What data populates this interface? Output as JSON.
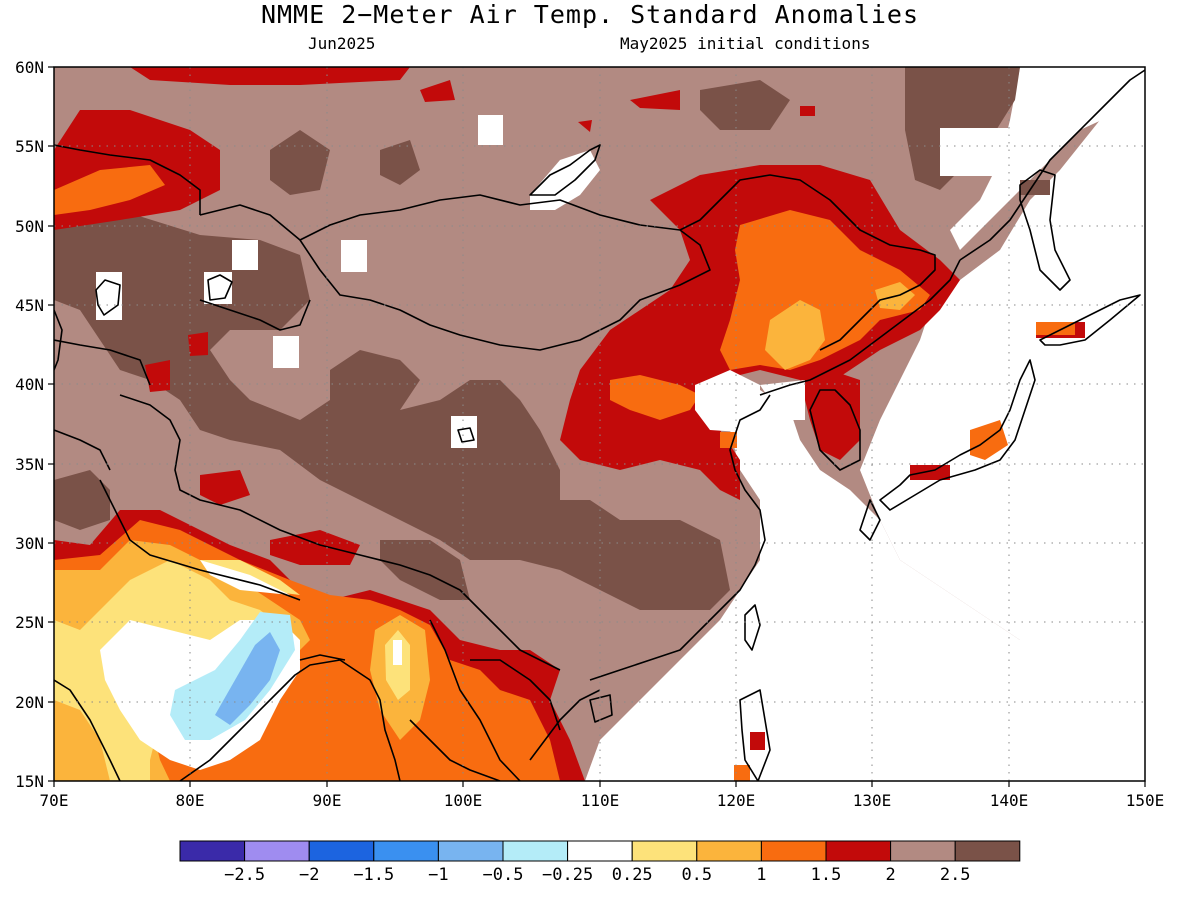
{
  "title": "NMME 2−Meter Air Temp. Standard Anomalies",
  "subtitle_left": "Jun2025",
  "subtitle_right": "May2025 initial conditions",
  "map": {
    "lon_range": [
      70,
      150
    ],
    "lat_range": [
      15,
      60
    ],
    "lon_ticks": [
      "70E",
      "80E",
      "90E",
      "100E",
      "110E",
      "120E",
      "130E",
      "140E",
      "150E"
    ],
    "lat_ticks": [
      "15N",
      "20N",
      "25N",
      "30N",
      "35N",
      "40N",
      "45N",
      "50N",
      "55N",
      "60N"
    ],
    "gridlines": true
  },
  "colorbar": {
    "colors": [
      "#3a2aa9",
      "#9f8cf0",
      "#1c64e0",
      "#3a90f0",
      "#78b4f0",
      "#b4ecf8",
      "#ffffff",
      "#fde27a",
      "#fbb43c",
      "#f86c10",
      "#c20a0a",
      "#b28a82",
      "#7a5248"
    ],
    "labels": [
      "−2.5",
      "−2",
      "−1.5",
      "−1",
      "−0.5",
      "−0.25",
      "0.25",
      "0.5",
      "1",
      "1.5",
      "2",
      "2.5"
    ]
  }
}
